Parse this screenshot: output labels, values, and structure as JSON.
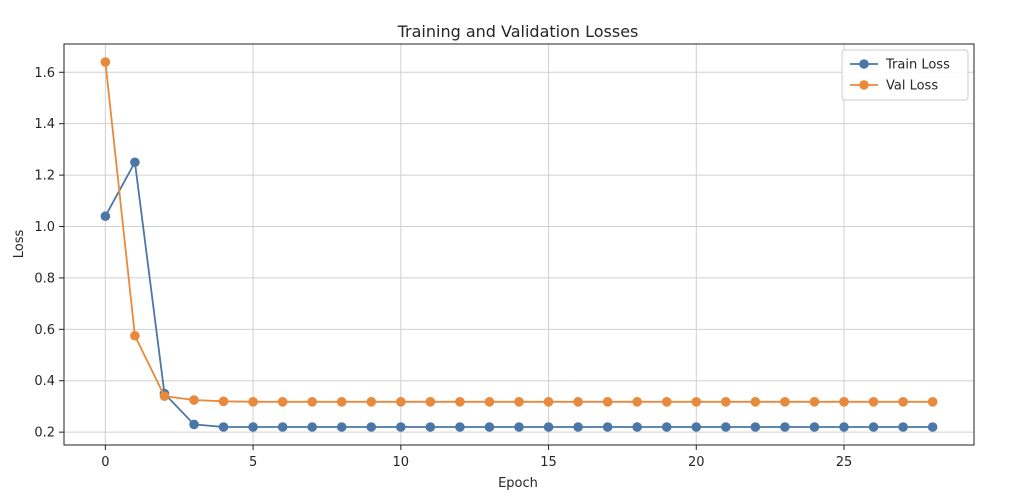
{
  "chart_data": {
    "type": "line",
    "title": "Training and Validation Losses",
    "xlabel": "Epoch",
    "ylabel": "Loss",
    "xlim": [
      -1.4,
      29.4
    ],
    "ylim": [
      0.15,
      1.71
    ],
    "xticks": [
      0,
      5,
      10,
      15,
      20,
      25
    ],
    "yticks": [
      0.2,
      0.4,
      0.6,
      0.8,
      1.0,
      1.2,
      1.4,
      1.6
    ],
    "grid": true,
    "legend": "top-right",
    "x": [
      0,
      1,
      2,
      3,
      4,
      5,
      6,
      7,
      8,
      9,
      10,
      11,
      12,
      13,
      14,
      15,
      16,
      17,
      18,
      19,
      20,
      21,
      22,
      23,
      24,
      25,
      26,
      27,
      28
    ],
    "series": [
      {
        "name": "Train Loss",
        "color": "#4a76a8",
        "values": [
          1.04,
          1.25,
          0.35,
          0.23,
          0.22,
          0.22,
          0.22,
          0.22,
          0.22,
          0.22,
          0.22,
          0.22,
          0.22,
          0.22,
          0.22,
          0.22,
          0.22,
          0.22,
          0.22,
          0.22,
          0.22,
          0.22,
          0.22,
          0.22,
          0.22,
          0.22,
          0.22,
          0.22,
          0.22
        ]
      },
      {
        "name": "Val Loss",
        "color": "#e8893b",
        "values": [
          1.64,
          0.575,
          0.34,
          0.325,
          0.32,
          0.318,
          0.318,
          0.318,
          0.318,
          0.318,
          0.318,
          0.318,
          0.318,
          0.318,
          0.318,
          0.318,
          0.318,
          0.318,
          0.318,
          0.318,
          0.318,
          0.318,
          0.318,
          0.318,
          0.318,
          0.318,
          0.318,
          0.318,
          0.318
        ]
      }
    ]
  }
}
